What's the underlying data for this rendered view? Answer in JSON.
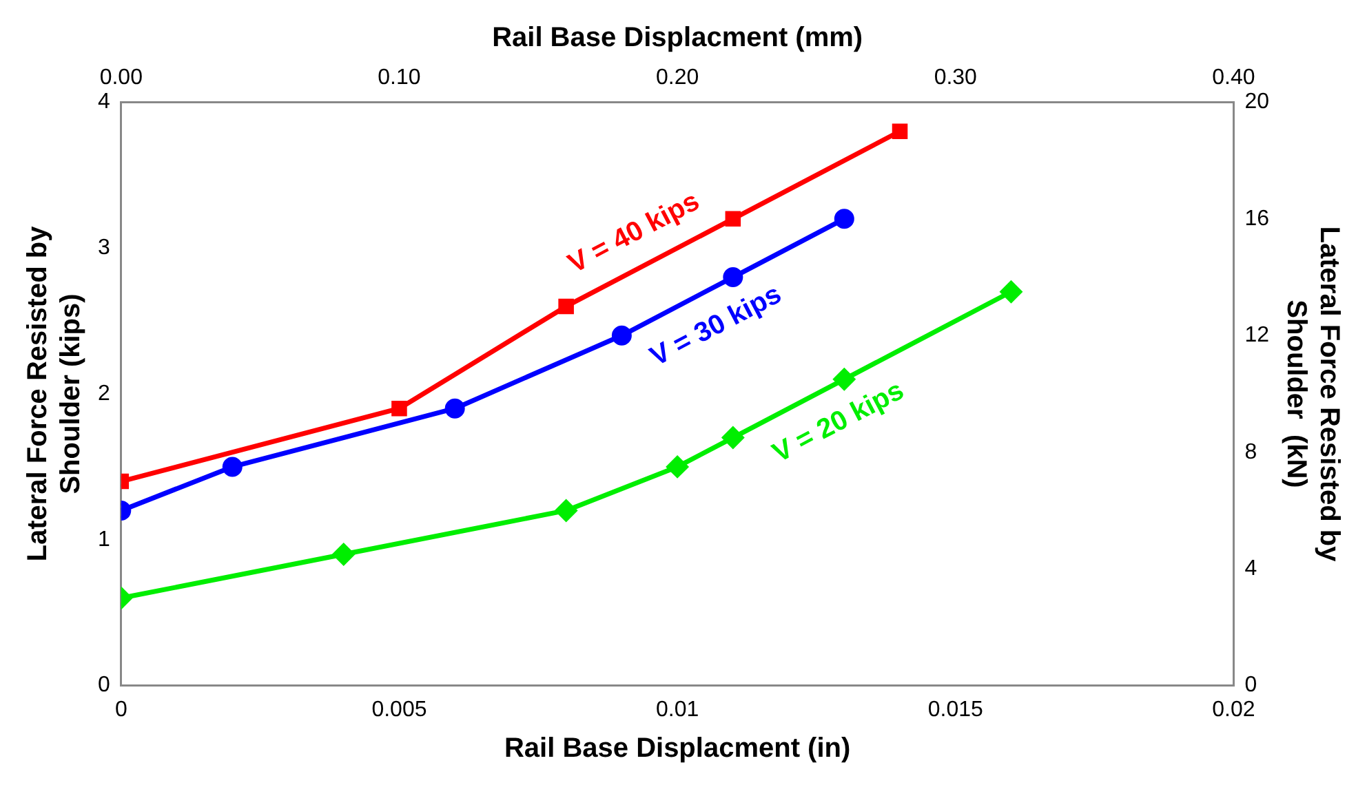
{
  "chart_data": {
    "type": "line",
    "xlabel": "Rail Base Displacment (in)",
    "x2label": "Rail Base Displacment (mm)",
    "ylabel": "Lateral Force Resisted by Shoulder (kips)",
    "y2label": "Lateral Force Resisted by Shoulder  (kN)",
    "xlim": [
      0,
      0.02
    ],
    "xticks": [
      0,
      0.005,
      0.01,
      0.015,
      0.02
    ],
    "x2lim": [
      0,
      0.4
    ],
    "x2ticks": [
      {
        "value": 0,
        "label": "0.00"
      },
      {
        "value": 0.1,
        "label": "0.10"
      },
      {
        "value": 0.2,
        "label": "0.20"
      },
      {
        "value": 0.3,
        "label": "0.30"
      },
      {
        "value": 0.4,
        "label": "0.40"
      }
    ],
    "ylim": [
      0,
      4
    ],
    "yticks": [
      0,
      1,
      2,
      3,
      4
    ],
    "y2lim": [
      0,
      20
    ],
    "y2ticks": [
      0,
      4,
      8,
      12,
      16,
      20
    ],
    "grid": false,
    "legend": false,
    "line_style": "solid",
    "series": [
      {
        "name": "V = 40 kips",
        "color": "#ff0000",
        "marker": "square",
        "x": [
          0,
          0.005,
          0.008,
          0.011,
          0.014
        ],
        "values": [
          1.4,
          1.9,
          2.6,
          3.2,
          3.8
        ]
      },
      {
        "name": "V = 30 kips",
        "color": "#0000ff",
        "marker": "circle",
        "x": [
          0,
          0.002,
          0.006,
          0.009,
          0.011,
          0.013
        ],
        "values": [
          1.2,
          1.5,
          1.9,
          2.4,
          2.8,
          3.2
        ]
      },
      {
        "name": "V = 20 kips",
        "color": "#00ee00",
        "marker": "diamond",
        "x": [
          0,
          0.004,
          0.008,
          0.01,
          0.011,
          0.013,
          0.016
        ],
        "values": [
          0.6,
          0.9,
          1.2,
          1.5,
          1.7,
          2.1,
          2.7
        ]
      }
    ]
  }
}
